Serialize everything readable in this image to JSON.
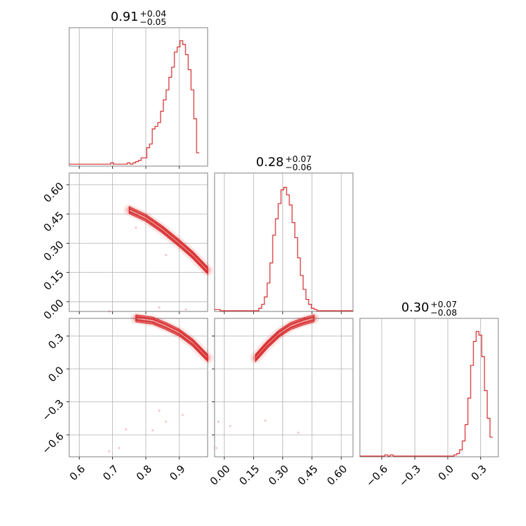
{
  "figure": {
    "kind": "corner plot",
    "color": "#d62728",
    "grid": true
  },
  "chart_data": [
    {
      "panel": "p1-marginal",
      "type": "histogram",
      "title": {
        "value": "0.91",
        "plus": "+0.04",
        "minus": "−0.05"
      },
      "xlim": [
        0.57,
        0.985
      ],
      "x_ticks": [
        0.6,
        0.7,
        0.8,
        0.9
      ],
      "x_tick_labels": [
        "0.6",
        "0.7",
        "0.8",
        "0.9"
      ],
      "bin_start": 0.57,
      "bin_width": 0.0083,
      "counts": [
        1,
        1,
        1,
        1,
        1,
        1,
        1,
        1,
        1,
        1,
        1,
        1,
        1,
        1,
        1,
        2,
        1,
        1,
        1,
        1,
        1,
        2,
        1,
        2,
        3,
        4,
        6,
        6,
        14,
        17,
        29,
        31,
        34,
        43,
        52,
        60,
        70,
        78,
        90,
        94,
        99,
        96,
        88,
        76,
        60,
        37,
        10
      ],
      "peak": 100
    },
    {
      "panel": "p2-vs-p1",
      "type": "contour",
      "xlim": [
        0.57,
        0.985
      ],
      "ylim": [
        -0.05,
        0.66
      ],
      "y_ticks": [
        0.0,
        0.15,
        0.3,
        0.45,
        0.6
      ],
      "y_tick_labels": [
        "0.00",
        "0.15",
        "0.30",
        "0.45",
        "0.60"
      ],
      "ridge": [
        [
          0.75,
          0.47
        ],
        [
          0.8,
          0.43
        ],
        [
          0.85,
          0.37
        ],
        [
          0.9,
          0.3
        ],
        [
          0.94,
          0.24
        ],
        [
          0.985,
          0.16
        ]
      ],
      "outliers": [
        [
          0.69,
          -0.05
        ],
        [
          0.77,
          0.38
        ],
        [
          0.84,
          -0.03
        ],
        [
          0.86,
          0.24
        ],
        [
          0.92,
          -0.04
        ]
      ]
    },
    {
      "panel": "p2-marginal",
      "type": "histogram",
      "title": {
        "value": "0.28",
        "plus": "+0.07",
        "minus": "−0.06"
      },
      "xlim": [
        -0.05,
        0.66
      ],
      "bin_start": -0.05,
      "bin_width": 0.0142,
      "counts": [
        1,
        1,
        0,
        0,
        0,
        0,
        0,
        0,
        0,
        0,
        0,
        0,
        0,
        0,
        0,
        0,
        2,
        5,
        11,
        22,
        38,
        60,
        73,
        85,
        96,
        98,
        92,
        84,
        70,
        58,
        42,
        28,
        17,
        9,
        5,
        2,
        1,
        0,
        0,
        0,
        0,
        0,
        0,
        0,
        0,
        0,
        0,
        0,
        0,
        0
      ],
      "peak": 100
    },
    {
      "panel": "p3-vs-p1",
      "type": "contour",
      "xlim": [
        0.57,
        0.985
      ],
      "ylim": [
        -0.8,
        0.46
      ],
      "y_ticks": [
        -0.6,
        -0.3,
        0.0,
        0.3
      ],
      "y_tick_labels": [
        "−0.6",
        "−0.3",
        "0.0",
        "0.3"
      ],
      "ridge": [
        [
          0.77,
          0.46
        ],
        [
          0.82,
          0.44
        ],
        [
          0.86,
          0.39
        ],
        [
          0.9,
          0.33
        ],
        [
          0.94,
          0.24
        ],
        [
          0.985,
          0.1
        ]
      ],
      "outliers": [
        [
          0.72,
          -0.72
        ],
        [
          0.69,
          -0.75
        ],
        [
          0.74,
          -0.55
        ],
        [
          0.82,
          -0.56
        ],
        [
          0.84,
          -0.38
        ],
        [
          0.86,
          -0.48
        ],
        [
          0.91,
          -0.42
        ]
      ]
    },
    {
      "panel": "p3-vs-p2",
      "type": "contour",
      "xlim": [
        -0.05,
        0.66
      ],
      "ylim": [
        -0.8,
        0.46
      ],
      "x_ticks": [
        0.0,
        0.15,
        0.3,
        0.45,
        0.6
      ],
      "x_tick_labels": [
        "0.00",
        "0.15",
        "0.30",
        "0.45",
        "0.60"
      ],
      "ridge": [
        [
          0.16,
          0.1
        ],
        [
          0.22,
          0.22
        ],
        [
          0.28,
          0.32
        ],
        [
          0.34,
          0.39
        ],
        [
          0.4,
          0.43
        ],
        [
          0.46,
          0.46
        ]
      ],
      "outliers": [
        [
          -0.04,
          -0.72
        ],
        [
          -0.03,
          -0.48
        ],
        [
          0.21,
          -0.47
        ],
        [
          0.38,
          -0.58
        ],
        [
          0.03,
          -0.52
        ]
      ]
    },
    {
      "panel": "p3-marginal",
      "type": "histogram",
      "title": {
        "value": "0.30",
        "plus": "+0.07",
        "minus": "−0.08"
      },
      "xlim": [
        -0.8,
        0.46
      ],
      "x_ticks": [
        -0.6,
        -0.3,
        0.0,
        0.3
      ],
      "x_tick_labels": [
        "−0.6",
        "−0.3",
        "0.0",
        "0.3"
      ],
      "bin_start": -0.8,
      "bin_width": 0.0252,
      "counts": [
        0,
        0,
        0,
        0,
        0,
        0,
        0,
        0,
        0,
        1,
        0,
        1,
        0,
        0,
        0,
        0,
        0,
        0,
        0,
        0,
        0,
        0,
        0,
        0,
        0,
        0,
        0,
        0,
        0,
        0,
        0,
        0,
        0,
        0,
        1,
        2,
        5,
        12,
        25,
        46,
        72,
        91,
        99,
        96,
        79,
        52,
        30,
        15
      ],
      "peak": 100
    }
  ]
}
